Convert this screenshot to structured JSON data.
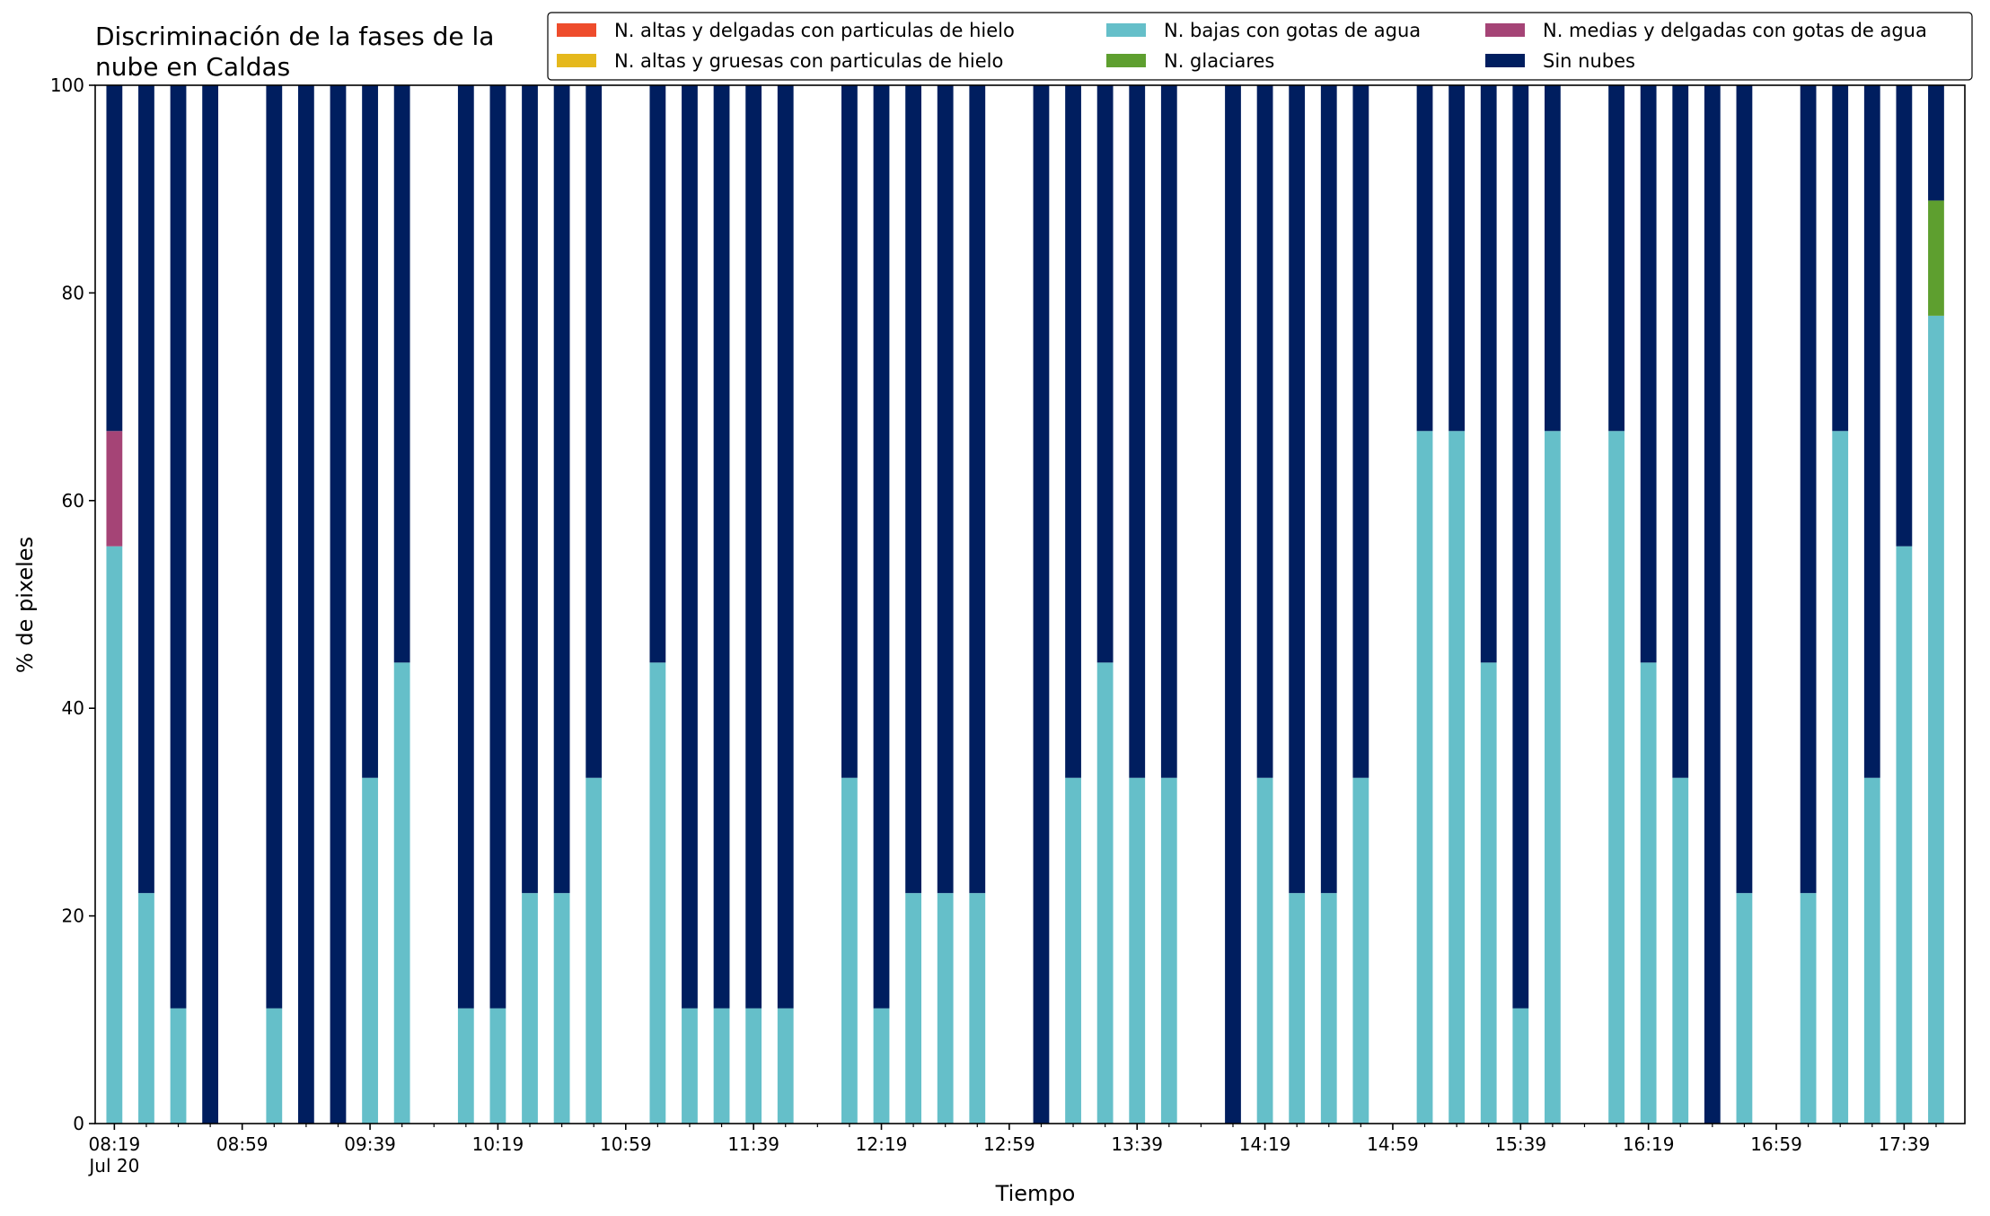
{
  "chart_data": {
    "type": "bar",
    "stacked": true,
    "title_lines": [
      "Discriminación de la fases de la",
      "nube en Caldas"
    ],
    "xlabel": "Tiempo",
    "ylabel": "% de pixeles",
    "ylim": [
      0,
      100
    ],
    "yticks": [
      0,
      20,
      40,
      60,
      80,
      100
    ],
    "grid": false,
    "legend_position": "top-right",
    "legend_columns": 3,
    "x_unit": "minutes after 08:19 (Jul 20)",
    "bar_width_minutes": 5,
    "xlim": [
      -6,
      579
    ],
    "xticks": [
      {
        "t": 0,
        "label": "08:19",
        "sublabel": "Jul 20"
      },
      {
        "t": 40,
        "label": "08:59"
      },
      {
        "t": 80,
        "label": "09:39"
      },
      {
        "t": 120,
        "label": "10:19"
      },
      {
        "t": 160,
        "label": "10:59"
      },
      {
        "t": 200,
        "label": "11:39"
      },
      {
        "t": 240,
        "label": "12:19"
      },
      {
        "t": 280,
        "label": "12:59"
      },
      {
        "t": 320,
        "label": "13:39"
      },
      {
        "t": 360,
        "label": "14:19"
      },
      {
        "t": 400,
        "label": "14:59"
      },
      {
        "t": 440,
        "label": "15:39"
      },
      {
        "t": 480,
        "label": "16:19"
      },
      {
        "t": 520,
        "label": "16:59"
      },
      {
        "t": 560,
        "label": "17:39"
      }
    ],
    "minor_xtick_step": 10,
    "x": [
      0,
      10,
      20,
      30,
      50,
      60,
      70,
      80,
      90,
      110,
      120,
      130,
      140,
      150,
      170,
      180,
      190,
      200,
      210,
      230,
      240,
      250,
      260,
      270,
      290,
      300,
      310,
      320,
      330,
      350,
      360,
      370,
      380,
      390,
      410,
      420,
      430,
      440,
      450,
      470,
      480,
      490,
      500,
      510,
      530,
      540,
      550,
      560,
      570
    ],
    "series": [
      {
        "name": "N. altas y delgadas con particulas de hielo",
        "color": "#ee4c2c",
        "values": [
          0,
          0,
          0,
          0,
          0,
          0,
          0,
          0,
          0,
          0,
          0,
          0,
          0,
          0,
          0,
          0,
          0,
          0,
          0,
          0,
          0,
          0,
          0,
          0,
          0,
          0,
          0,
          0,
          0,
          0,
          0,
          0,
          0,
          0,
          0,
          0,
          0,
          0,
          0,
          0,
          0,
          0,
          0,
          0,
          0,
          0,
          0,
          0,
          0
        ]
      },
      {
        "name": "N. altas y gruesas con particulas de hielo",
        "color": "#e5b81c",
        "values": [
          0,
          0,
          0,
          0,
          0,
          0,
          0,
          0,
          0,
          0,
          0,
          0,
          0,
          0,
          0,
          0,
          0,
          0,
          0,
          0,
          0,
          0,
          0,
          0,
          0,
          0,
          0,
          0,
          0,
          0,
          0,
          0,
          0,
          0,
          0,
          0,
          0,
          0,
          0,
          0,
          0,
          0,
          0,
          0,
          0,
          0,
          0,
          0,
          0
        ]
      },
      {
        "name": "N. bajas con gotas de agua",
        "color": "#65bfc9",
        "values": [
          55.6,
          22.2,
          11.1,
          0,
          11.1,
          0,
          0,
          33.3,
          44.4,
          11.1,
          11.1,
          22.2,
          22.2,
          33.3,
          44.4,
          11.1,
          11.1,
          11.1,
          11.1,
          33.3,
          11.1,
          22.2,
          22.2,
          22.2,
          0,
          33.3,
          44.4,
          33.3,
          33.3,
          0,
          33.3,
          22.2,
          22.2,
          33.3,
          66.7,
          66.7,
          44.4,
          11.1,
          66.7,
          66.7,
          44.4,
          33.3,
          0,
          22.2,
          22.2,
          66.7,
          33.3,
          55.6,
          77.8
        ]
      },
      {
        "name": "N. glaciares",
        "color": "#5e9f2f",
        "values": [
          0,
          0,
          0,
          0,
          0,
          0,
          0,
          0,
          0,
          0,
          0,
          0,
          0,
          0,
          0,
          0,
          0,
          0,
          0,
          0,
          0,
          0,
          0,
          0,
          0,
          0,
          0,
          0,
          0,
          0,
          0,
          0,
          0,
          0,
          0,
          0,
          0,
          0,
          0,
          0,
          0,
          0,
          0,
          0,
          0,
          0,
          0,
          0,
          11.1
        ]
      },
      {
        "name": "N. medias y delgadas con gotas de agua",
        "color": "#a54476",
        "values": [
          11.1,
          0,
          0,
          0,
          0,
          0,
          0,
          0,
          0,
          0,
          0,
          0,
          0,
          0,
          0,
          0,
          0,
          0,
          0,
          0,
          0,
          0,
          0,
          0,
          0,
          0,
          0,
          0,
          0,
          0,
          0,
          0,
          0,
          0,
          0,
          0,
          0,
          0,
          0,
          0,
          0,
          0,
          0,
          0,
          0,
          0,
          0,
          0,
          0
        ]
      },
      {
        "name": "Sin nubes",
        "color": "#001e5f",
        "values": [
          33.3,
          77.8,
          88.9,
          100,
          88.9,
          100,
          100,
          66.7,
          55.6,
          88.9,
          88.9,
          77.8,
          77.8,
          66.7,
          55.6,
          88.9,
          88.9,
          88.9,
          88.9,
          66.7,
          88.9,
          77.8,
          77.8,
          77.8,
          100,
          66.7,
          55.6,
          66.7,
          66.7,
          100,
          66.7,
          77.8,
          77.8,
          66.7,
          33.3,
          33.3,
          55.6,
          88.9,
          33.3,
          33.3,
          55.6,
          66.7,
          100,
          77.8,
          77.8,
          33.3,
          66.7,
          44.4,
          11.1
        ]
      }
    ],
    "stack_order": [
      "N. altas y delgadas con particulas de hielo",
      "N. altas y gruesas con particulas de hielo",
      "N. bajas con gotas de agua",
      "N. medias y delgadas con gotas de agua",
      "N. glaciares",
      "Sin nubes"
    ],
    "legend_order": [
      "N. altas y delgadas con particulas de hielo",
      "N. altas y gruesas con particulas de hielo",
      "N. bajas con gotas de agua",
      "N. glaciares",
      "N. medias y delgadas con gotas de agua",
      "Sin nubes"
    ]
  }
}
